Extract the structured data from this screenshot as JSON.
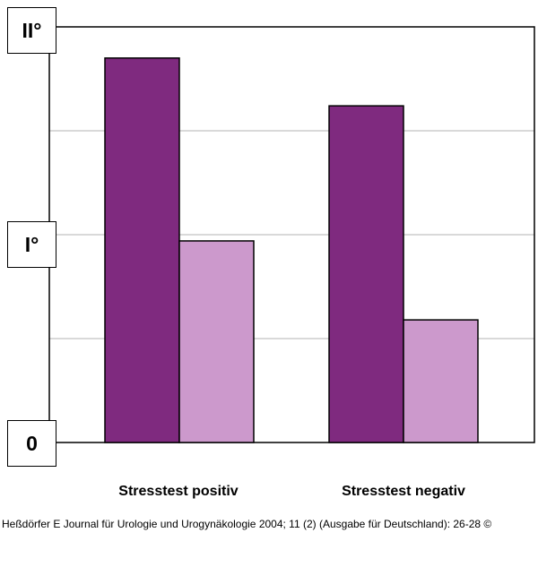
{
  "chart_data": {
    "type": "bar",
    "categories": [
      "Stresstest positiv",
      "Stresstest negativ"
    ],
    "series": [
      {
        "values": [
          1.85,
          1.62
        ],
        "color": "#7f2a7f"
      },
      {
        "values": [
          0.97,
          0.59
        ],
        "color": "#cc99cc"
      }
    ],
    "yticks": [
      {
        "value": 0,
        "label": "0"
      },
      {
        "value": 1,
        "label": "I°"
      },
      {
        "value": 2,
        "label": "II°"
      }
    ],
    "ylim": [
      0,
      2
    ],
    "grid": true,
    "legend": "none"
  },
  "source": "Heßdörfer E Journal für Urologie und Urogynäkologie 2004; 11 (2) (Ausgabe für Deutschland): 26-28 ©"
}
